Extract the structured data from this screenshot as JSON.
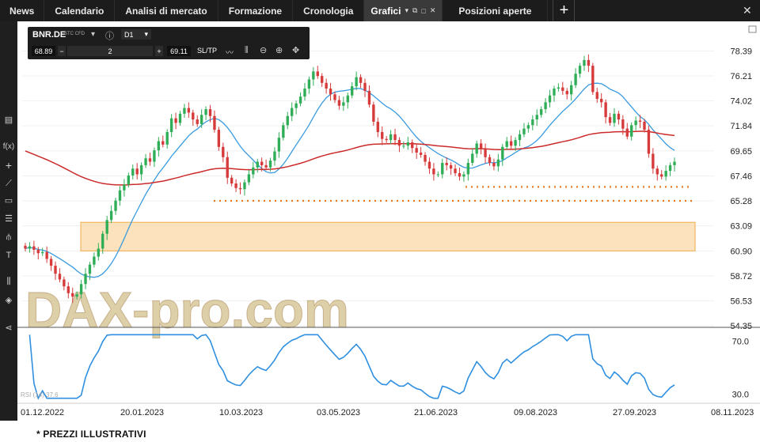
{
  "tabs": [
    {
      "label": "News"
    },
    {
      "label": "Calendario"
    },
    {
      "label": "Analisi di mercato"
    },
    {
      "label": "Formazione"
    },
    {
      "label": "Cronologia"
    },
    {
      "label": "Grafici"
    },
    {
      "label": "Posizioni aperte"
    }
  ],
  "instrument": {
    "symbol": "BNR.DE",
    "type": "STC CFD",
    "timeframe": "D1",
    "bid": "68.89",
    "quantity": "2",
    "ask": "69.11",
    "sltp_label": "SL/TP"
  },
  "watermark": "DAX-pro.com",
  "footnote": "* PREZZI ILLUSTRATIVI",
  "indicator_label": "RSI (14) 37.6",
  "icons": [
    "chart-type-icon",
    "fx-icon",
    "crosshair-icon",
    "trendline-icon",
    "rectangle-icon",
    "fibonacci-icon",
    "pitchfork-icon",
    "text-icon",
    "indicators-icon",
    "layers-icon",
    "share-icon",
    "info-icon",
    "zoom-out-icon",
    "zoom-in-icon",
    "move-icon",
    "line-chart-icon",
    "candles-icon",
    "settings-icon"
  ],
  "colors": {
    "up_candle": "#2fae57",
    "down_candle": "#d63a3a",
    "ma_fast": "#3a9be0",
    "ma_slow": "#cc2a2a",
    "rsi": "#2f8fe0",
    "support_dots": "#e87722",
    "zone_fill": "#fbd9a8",
    "zone_border": "#f0a94a"
  },
  "chart_data": [
    {
      "type": "candlestick",
      "ylim": [
        54.35,
        79.6
      ],
      "y_ticks": [
        "78.39",
        "76.21",
        "74.02",
        "71.84",
        "69.65",
        "67.46",
        "65.28",
        "63.09",
        "60.90",
        "58.72",
        "56.53",
        "54.35"
      ],
      "x_ticks": [
        "01.12.2022",
        "20.01.2023",
        "10.03.2023",
        "03.05.2023",
        "21.06.2023",
        "09.08.2023",
        "27.09.2023",
        "08.11.2023"
      ],
      "closes": [
        61.1,
        61.3,
        61.0,
        60.7,
        60.8,
        60.2,
        59.6,
        58.9,
        58.4,
        57.8,
        57.2,
        56.9,
        57.1,
        58.0,
        58.9,
        59.7,
        60.4,
        61.1,
        62.4,
        63.6,
        64.4,
        65.3,
        66.2,
        66.7,
        67.5,
        68.1,
        67.6,
        68.4,
        69.0,
        68.7,
        69.7,
        70.5,
        70.2,
        71.3,
        72.5,
        72.1,
        72.9,
        73.4,
        73.0,
        72.4,
        72.0,
        72.8,
        73.3,
        72.7,
        71.5,
        70.0,
        69.1,
        67.3,
        66.8,
        66.4,
        66.3,
        66.9,
        67.6,
        68.2,
        68.7,
        68.4,
        68.2,
        68.8,
        69.6,
        70.8,
        71.9,
        72.7,
        73.4,
        73.8,
        74.4,
        75.1,
        75.9,
        76.6,
        76.2,
        75.6,
        75.1,
        74.6,
        74.1,
        73.6,
        73.9,
        74.5,
        75.3,
        76.1,
        75.6,
        74.9,
        73.7,
        72.2,
        71.3,
        70.7,
        70.6,
        71.1,
        70.6,
        70.1,
        70.1,
        70.4,
        69.9,
        69.5,
        69.3,
        68.7,
        68.1,
        67.6,
        67.6,
        68.6,
        68.4,
        68.1,
        67.7,
        67.4,
        67.6,
        68.6,
        69.4,
        70.3,
        69.8,
        69.1,
        68.6,
        68.3,
        68.9,
        70.0,
        70.5,
        70.1,
        70.6,
        71.1,
        71.6,
        71.9,
        72.4,
        72.8,
        73.3,
        73.9,
        74.5,
        75.1,
        75.2,
        74.9,
        74.6,
        75.4,
        76.4,
        77.1,
        77.6,
        77.1,
        74.8,
        74.2,
        73.9,
        72.6,
        72.1,
        72.9,
        72.4,
        71.6,
        70.9,
        71.9,
        72.3,
        72.2,
        71.5,
        69.4,
        68.1,
        67.6,
        67.4,
        67.9,
        68.4,
        68.7
      ],
      "ma_fast": {
        "period": "short",
        "range_approx": [
          57.5,
          73.3
        ]
      },
      "ma_slow": {
        "period": "long",
        "range_approx": [
          67.3,
          71.2
        ]
      },
      "support_levels": [
        65.28,
        66.5
      ],
      "zone": [
        60.9,
        63.4
      ]
    },
    {
      "type": "line",
      "name": "RSI (14) 37.6",
      "ylim": [
        25,
        77
      ],
      "y_ticks": [
        "70.0",
        "30.0"
      ],
      "last_value": 37.6
    }
  ]
}
